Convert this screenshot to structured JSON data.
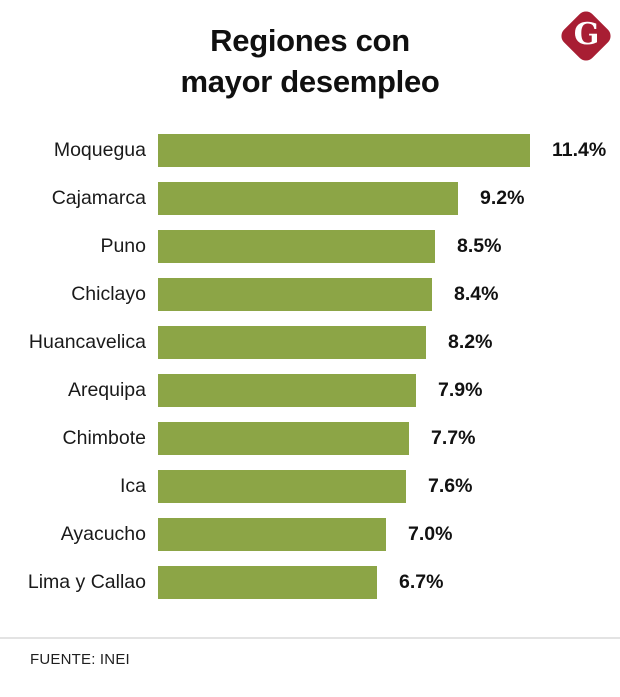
{
  "header": {
    "title_line1": "Regiones con",
    "title_line2": "mayor desempleo",
    "logo_letter": "G"
  },
  "chart_data": {
    "type": "bar",
    "orientation": "horizontal",
    "title": "Regiones con mayor desempleo",
    "categories": [
      "Moquegua",
      "Cajamarca",
      "Puno",
      "Chiclayo",
      "Huancavelica",
      "Arequipa",
      "Chimbote",
      "Ica",
      "Ayacucho",
      "Lima y Callao"
    ],
    "values": [
      11.4,
      9.2,
      8.5,
      8.4,
      8.2,
      7.9,
      7.7,
      7.6,
      7.0,
      6.7
    ],
    "value_labels": [
      "11.4%",
      "9.2%",
      "8.5%",
      "8.4%",
      "8.2%",
      "7.9%",
      "7.7%",
      "7.6%",
      "7.0%",
      "6.7%"
    ],
    "unit": "%",
    "xlim": [
      0,
      11.4
    ],
    "grid": false,
    "legend": false,
    "bar_color": "#8CA546"
  },
  "footer": {
    "source": "FUENTE: INEI"
  },
  "colors": {
    "bar": "#8CA546",
    "logo_background": "#A81E33",
    "divider": "#E3E3E3",
    "text": "#111111"
  }
}
